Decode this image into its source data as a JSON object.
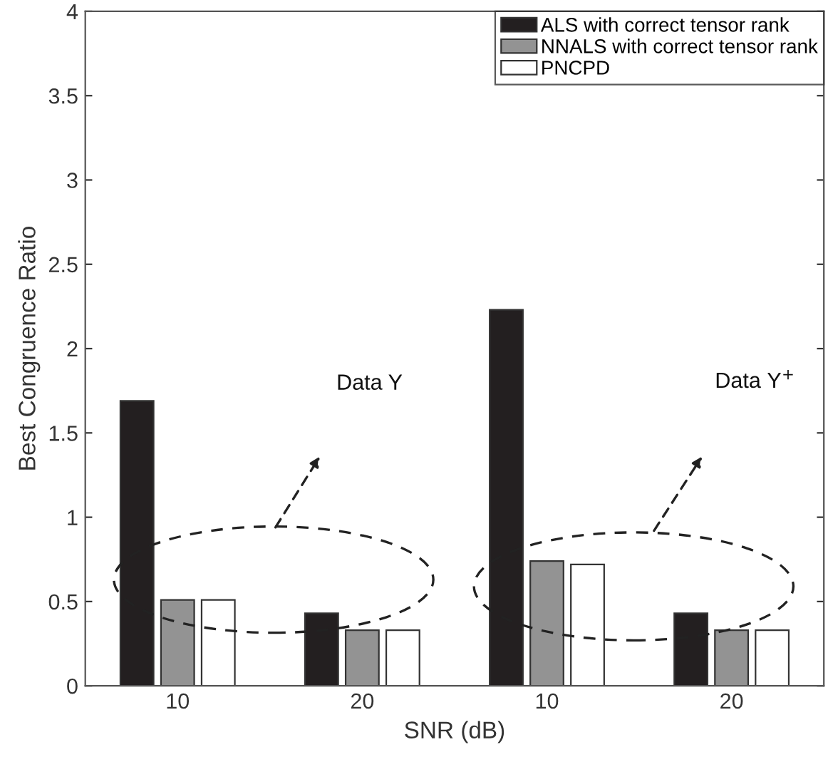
{
  "chart_data": {
    "type": "bar",
    "xlabel": "SNR (dB)",
    "ylabel": "Best Congruence Ratio",
    "categories": [
      "10",
      "20",
      "10",
      "20"
    ],
    "series": [
      {
        "name": "ALS with correct tensor rank",
        "color": "#231f20",
        "values": [
          1.69,
          0.43,
          2.23,
          0.43
        ]
      },
      {
        "name": "NNALS with correct tensor rank",
        "color": "#939393",
        "values": [
          0.51,
          0.33,
          0.74,
          0.33
        ]
      },
      {
        "name": "PNCPD",
        "color": "#ffffff",
        "values": [
          0.51,
          0.33,
          0.72,
          0.33
        ]
      }
    ],
    "ylim": [
      0,
      4
    ],
    "yticks": [
      0,
      0.5,
      1,
      1.5,
      2,
      2.5,
      3,
      3.5,
      4
    ],
    "annotations": [
      "Data Y",
      "Data Y$^{+}$"
    ],
    "legend": "top right",
    "grid": false
  }
}
